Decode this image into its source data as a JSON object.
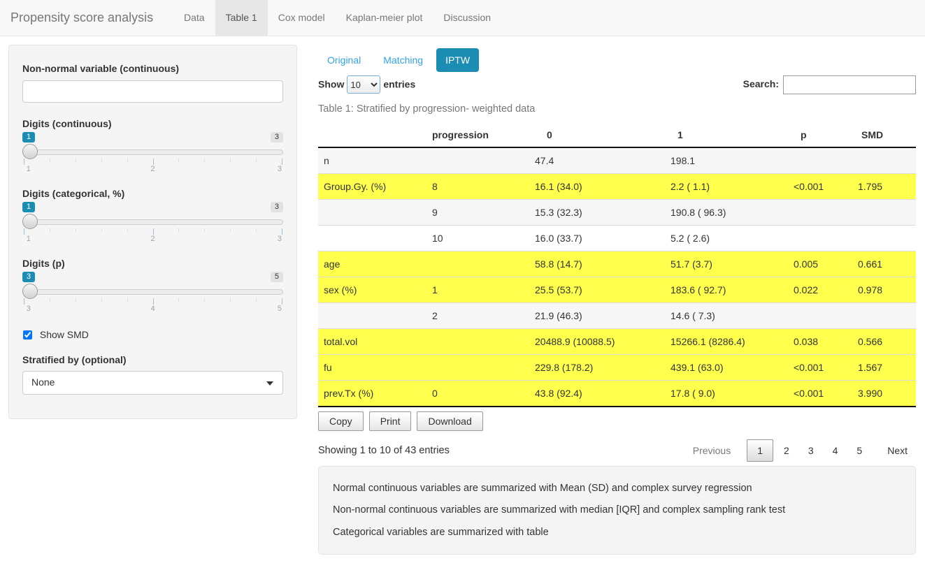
{
  "navbar": {
    "brand": "Propensity score analysis",
    "tabs": [
      {
        "label": "Data",
        "active": false
      },
      {
        "label": "Table 1",
        "active": true
      },
      {
        "label": "Cox model",
        "active": false
      },
      {
        "label": "Kaplan-meier plot",
        "active": false
      },
      {
        "label": "Discussion",
        "active": false
      }
    ]
  },
  "sidebar": {
    "nonnormal_label": "Non-normal variable (continuous)",
    "nonnormal_value": "",
    "sliders": [
      {
        "label": "Digits (continuous)",
        "value": "1",
        "max": "3",
        "ticks": [
          "1",
          "2",
          "3"
        ]
      },
      {
        "label": "Digits (categorical, %)",
        "value": "1",
        "max": "3",
        "ticks": [
          "1",
          "2",
          "3"
        ]
      },
      {
        "label": "Digits (p)",
        "value": "3",
        "max": "5",
        "ticks": [
          "3",
          "4",
          "5"
        ]
      }
    ],
    "show_smd": {
      "label": "Show SMD",
      "checked": true
    },
    "stratified_label": "Stratified by (optional)",
    "stratified_value": "None"
  },
  "main": {
    "pills": [
      {
        "label": "Original",
        "active": false
      },
      {
        "label": "Matching",
        "active": false
      },
      {
        "label": "IPTW",
        "active": true
      }
    ],
    "length_control": {
      "prefix": "Show",
      "value": "10",
      "suffix": "entries"
    },
    "search_label": "Search:",
    "search_value": "",
    "caption": "Table 1: Stratified by progression- weighted data",
    "table": {
      "headers": [
        "",
        "progression",
        "0",
        "1",
        "p",
        "SMD"
      ],
      "rows": [
        {
          "cells": [
            "n",
            "",
            "47.4",
            "198.1",
            "",
            ""
          ],
          "highlight": false,
          "striped": true
        },
        {
          "cells": [
            "Group.Gy. (%)",
            "8",
            "16.1 (34.0)",
            "2.2 ( 1.1)",
            "<0.001",
            "1.795"
          ],
          "highlight": true,
          "striped": false
        },
        {
          "cells": [
            "",
            "9",
            "15.3 (32.3)",
            "190.8 ( 96.3)",
            "",
            ""
          ],
          "highlight": false,
          "striped": true
        },
        {
          "cells": [
            "",
            "10",
            "16.0 (33.7)",
            "5.2 ( 2.6)",
            "",
            ""
          ],
          "highlight": false,
          "striped": false
        },
        {
          "cells": [
            "age",
            "",
            "58.8 (14.7)",
            "51.7 (3.7)",
            "0.005",
            "0.661"
          ],
          "highlight": true,
          "striped": false
        },
        {
          "cells": [
            "sex (%)",
            "1",
            "25.5 (53.7)",
            "183.6 ( 92.7)",
            "0.022",
            "0.978"
          ],
          "highlight": true,
          "striped": false
        },
        {
          "cells": [
            "",
            "2",
            "21.9 (46.3)",
            "14.6 ( 7.3)",
            "",
            ""
          ],
          "highlight": false,
          "striped": true
        },
        {
          "cells": [
            "total.vol",
            "",
            "20488.9 (10088.5)",
            "15266.1 (8286.4)",
            "0.038",
            "0.566"
          ],
          "highlight": true,
          "striped": false
        },
        {
          "cells": [
            "fu",
            "",
            "229.8 (178.2)",
            "439.1 (63.0)",
            "<0.001",
            "1.567"
          ],
          "highlight": true,
          "striped": false
        },
        {
          "cells": [
            "prev.Tx (%)",
            "0",
            "43.8 (92.4)",
            "17.8 ( 9.0)",
            "<0.001",
            "3.990"
          ],
          "highlight": true,
          "striped": false
        }
      ]
    },
    "buttons": [
      "Copy",
      "Print",
      "Download"
    ],
    "info": "Showing 1 to 10 of 43 entries",
    "pagination": {
      "previous_label": "Previous",
      "pages": [
        "1",
        "2",
        "3",
        "4",
        "5"
      ],
      "active_page": "1",
      "next_label": "Next"
    },
    "notes": [
      "Normal continuous variables are summarized with Mean (SD) and complex survey regression",
      "Non-normal continuous variables are summarized with median [IQR] and complex sampling rank test",
      "Categorical variables are summarized with table"
    ]
  },
  "colors": {
    "accent": "#1b8cb2",
    "link_blue": "#2fa4e7",
    "row_highlight": "#ffff4d",
    "row_stripe": "#f6f6f6",
    "navbar_bg": "#f8f8f8",
    "navbar_active_bg": "#e7e7e7",
    "well_bg": "#f5f5f5"
  }
}
